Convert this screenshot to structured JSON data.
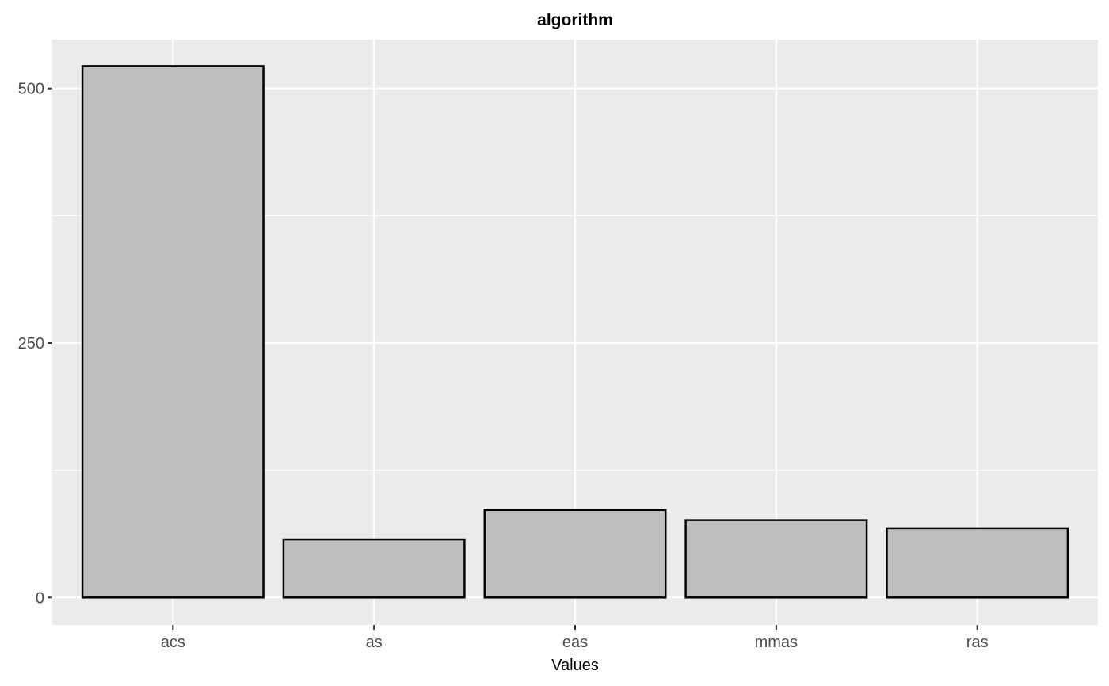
{
  "chart_data": {
    "type": "bar",
    "title": "algorithm",
    "xlabel": "Values",
    "ylabel": "",
    "categories": [
      "acs",
      "as",
      "eas",
      "mmas",
      "ras"
    ],
    "values": [
      522,
      57,
      86,
      76,
      68
    ],
    "ylim": [
      -27,
      548
    ],
    "yticks": [
      0,
      250,
      500
    ],
    "ytick_labels": [
      "0",
      "250",
      "500"
    ],
    "grid": true,
    "legend": "none",
    "colors": {
      "panel_background": "#ebebeb",
      "grid_line": "#ffffff",
      "bar_fill": "#bebebe",
      "bar_outline": "#000000"
    }
  }
}
